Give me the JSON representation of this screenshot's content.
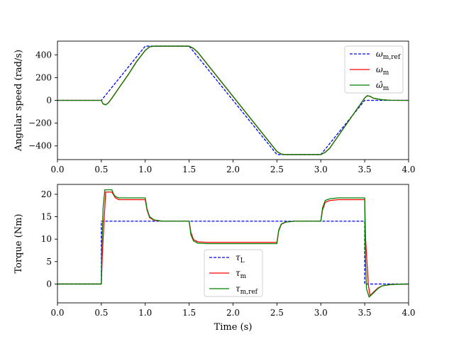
{
  "chart_data": [
    {
      "type": "line",
      "xlabel": "",
      "ylabel": "Angular speed (rad/s)",
      "xlim": [
        0,
        4.0
      ],
      "ylim": [
        -520,
        520
      ],
      "xticks": [
        "0.0",
        "0.5",
        "1.0",
        "1.5",
        "2.0",
        "2.5",
        "3.0",
        "3.5",
        "4.0"
      ],
      "yticks": [
        "−400",
        "−200",
        "0",
        "200",
        "400"
      ],
      "ytick_values": [
        -400,
        -200,
        0,
        200,
        400
      ],
      "xtick_values": [
        0,
        0.5,
        1.0,
        1.5,
        2.0,
        2.5,
        3.0,
        3.5,
        4.0
      ],
      "grid": false,
      "legend_position": "top-right",
      "series": [
        {
          "name": "ω_m,ref",
          "legend_main": "ω",
          "legend_sub": "m,ref",
          "color": "#0000ff",
          "style": "dashed",
          "x": [
            0,
            0.5,
            1.0,
            1.5,
            2.5,
            3.0,
            3.5,
            4.0
          ],
          "y": [
            0,
            0,
            476,
            476,
            -476,
            -476,
            0,
            0
          ]
        },
        {
          "name": "ω_m",
          "legend_main": "ω",
          "legend_sub": "m",
          "color": "#ff0000",
          "style": "solid",
          "x": [
            0,
            0.5,
            0.52,
            0.55,
            0.58,
            0.62,
            0.7,
            0.8,
            0.9,
            1.0,
            1.05,
            1.1,
            1.5,
            1.55,
            1.6,
            2.5,
            2.55,
            2.6,
            3.0,
            3.05,
            3.1,
            3.5,
            3.53,
            3.56,
            3.6,
            3.7,
            3.8,
            4.0
          ],
          "y": [
            0,
            0,
            -30,
            -38,
            -20,
            20,
            110,
            220,
            340,
            440,
            470,
            476,
            476,
            455,
            420,
            -450,
            -472,
            -476,
            -476,
            -455,
            -420,
            20,
            40,
            35,
            18,
            5,
            1,
            0
          ]
        },
        {
          "name": "ω̂_m",
          "legend_main": "ω̂",
          "legend_sub": "m",
          "color": "#008000",
          "style": "solid",
          "x": [
            0,
            0.5,
            0.52,
            0.55,
            0.58,
            0.62,
            0.7,
            0.8,
            0.9,
            1.0,
            1.05,
            1.1,
            1.5,
            1.55,
            1.6,
            2.5,
            2.55,
            2.6,
            3.0,
            3.05,
            3.1,
            3.5,
            3.53,
            3.56,
            3.6,
            3.7,
            3.8,
            4.0
          ],
          "y": [
            0,
            0,
            -32,
            -40,
            -22,
            18,
            108,
            218,
            338,
            438,
            470,
            476,
            476,
            457,
            422,
            -448,
            -472,
            -476,
            -476,
            -457,
            -422,
            22,
            42,
            36,
            19,
            5,
            1,
            0
          ]
        }
      ]
    },
    {
      "type": "line",
      "xlabel": "Time (s)",
      "ylabel": "Torque (Nm)",
      "xlim": [
        0,
        4.0
      ],
      "ylim": [
        -4.2,
        22.2
      ],
      "xticks": [
        "0.0",
        "0.5",
        "1.0",
        "1.5",
        "2.0",
        "2.5",
        "3.0",
        "3.5",
        "4.0"
      ],
      "yticks": [
        "0",
        "5",
        "10",
        "15",
        "20"
      ],
      "ytick_values": [
        0,
        5,
        10,
        15,
        20
      ],
      "xtick_values": [
        0,
        0.5,
        1.0,
        1.5,
        2.0,
        2.5,
        3.0,
        3.5,
        4.0
      ],
      "grid": false,
      "legend_position": "bottom-center",
      "series": [
        {
          "name": "τ_L",
          "legend_main": "τ",
          "legend_sub": "L",
          "color": "#0000ff",
          "style": "dashed",
          "x": [
            0,
            0.5,
            0.5,
            3.5,
            3.5,
            4.0
          ],
          "y": [
            0,
            0,
            14,
            14,
            0,
            0
          ]
        },
        {
          "name": "τ_m",
          "legend_main": "τ",
          "legend_sub": "m",
          "color": "#ff0000",
          "style": "solid",
          "x": [
            0,
            0.5,
            0.51,
            0.53,
            0.55,
            0.62,
            0.66,
            0.7,
            1.0,
            1.02,
            1.05,
            1.1,
            1.2,
            1.5,
            1.52,
            1.55,
            1.6,
            1.7,
            2.5,
            2.52,
            2.55,
            2.6,
            2.7,
            3.0,
            3.02,
            3.05,
            3.1,
            3.2,
            3.5,
            3.51,
            3.54,
            3.56,
            3.6,
            3.65,
            3.7,
            3.8,
            4.0
          ],
          "y": [
            0,
            0,
            6,
            14,
            20.5,
            20.5,
            19.2,
            18.8,
            18.8,
            16.5,
            14.8,
            14.2,
            14.0,
            14.0,
            11.5,
            9.9,
            9.4,
            9.3,
            9.3,
            11.8,
            13.3,
            13.8,
            14.0,
            14.0,
            16.5,
            18.2,
            18.6,
            18.8,
            18.8,
            10,
            0,
            -2.6,
            -1.8,
            -0.9,
            -0.4,
            -0.1,
            0
          ]
        },
        {
          "name": "τ_m,ref",
          "legend_main": "τ",
          "legend_sub": "m,ref",
          "color": "#008000",
          "style": "solid",
          "x": [
            0,
            0.5,
            0.505,
            0.52,
            0.54,
            0.62,
            0.64,
            0.66,
            0.7,
            1.0,
            1.02,
            1.05,
            1.1,
            1.2,
            1.5,
            1.52,
            1.55,
            1.6,
            1.7,
            2.5,
            2.52,
            2.55,
            2.6,
            2.7,
            3.0,
            3.02,
            3.05,
            3.1,
            3.2,
            3.5,
            3.505,
            3.52,
            3.55,
            3.6,
            3.65,
            3.7,
            3.8,
            4.0
          ],
          "y": [
            0,
            0,
            8,
            17,
            21,
            21,
            20,
            19.5,
            19.2,
            19.2,
            16.8,
            15,
            14.3,
            14.0,
            14.0,
            11,
            9.6,
            9.1,
            9.0,
            9.0,
            12,
            13.4,
            13.8,
            14.0,
            14.0,
            17,
            18.6,
            19.0,
            19.2,
            19.2,
            8,
            -1,
            -2.9,
            -2.0,
            -1.0,
            -0.4,
            -0.1,
            0
          ]
        }
      ]
    }
  ]
}
